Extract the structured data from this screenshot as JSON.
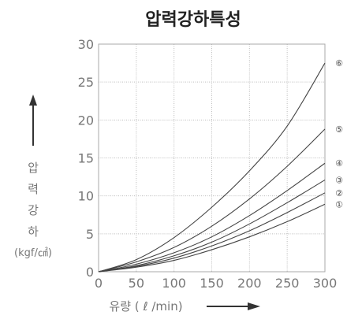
{
  "chart_data": {
    "type": "line",
    "title": "압력강하특성",
    "ylabel": [
      "압",
      "력",
      "강",
      "하"
    ],
    "yunit": "(kgf/㎠)",
    "xlabel": "유량 ( ℓ /min)",
    "xlim": [
      0,
      300
    ],
    "ylim": [
      0,
      30
    ],
    "xticks": [
      0,
      50,
      100,
      150,
      200,
      250,
      300
    ],
    "yticks": [
      0,
      5,
      10,
      15,
      20,
      25,
      30
    ],
    "grid": true,
    "series": [
      {
        "name": "①",
        "x": [
          0,
          50,
          100,
          150,
          200,
          250,
          300
        ],
        "y": [
          0,
          0.6,
          1.5,
          2.9,
          4.6,
          6.6,
          8.9
        ]
      },
      {
        "name": "②",
        "x": [
          0,
          50,
          100,
          150,
          200,
          250,
          300
        ],
        "y": [
          0,
          0.7,
          1.8,
          3.4,
          5.4,
          7.8,
          10.4
        ]
      },
      {
        "name": "③",
        "x": [
          0,
          50,
          100,
          150,
          200,
          250,
          300
        ],
        "y": [
          0,
          0.8,
          2.1,
          3.9,
          6.3,
          9.1,
          12.1
        ]
      },
      {
        "name": "④",
        "x": [
          0,
          50,
          100,
          150,
          200,
          250,
          300
        ],
        "y": [
          0,
          1.0,
          2.5,
          4.6,
          7.4,
          10.7,
          14.3
        ]
      },
      {
        "name": "⑤",
        "x": [
          0,
          50,
          100,
          150,
          200,
          250,
          300
        ],
        "y": [
          0,
          1.3,
          3.2,
          6.0,
          9.6,
          13.9,
          18.8
        ]
      },
      {
        "name": "⑥",
        "x": [
          0,
          50,
          100,
          150,
          200,
          250,
          300
        ],
        "y": [
          0,
          1.6,
          4.5,
          8.5,
          13.3,
          19.2,
          27.5
        ]
      }
    ]
  }
}
